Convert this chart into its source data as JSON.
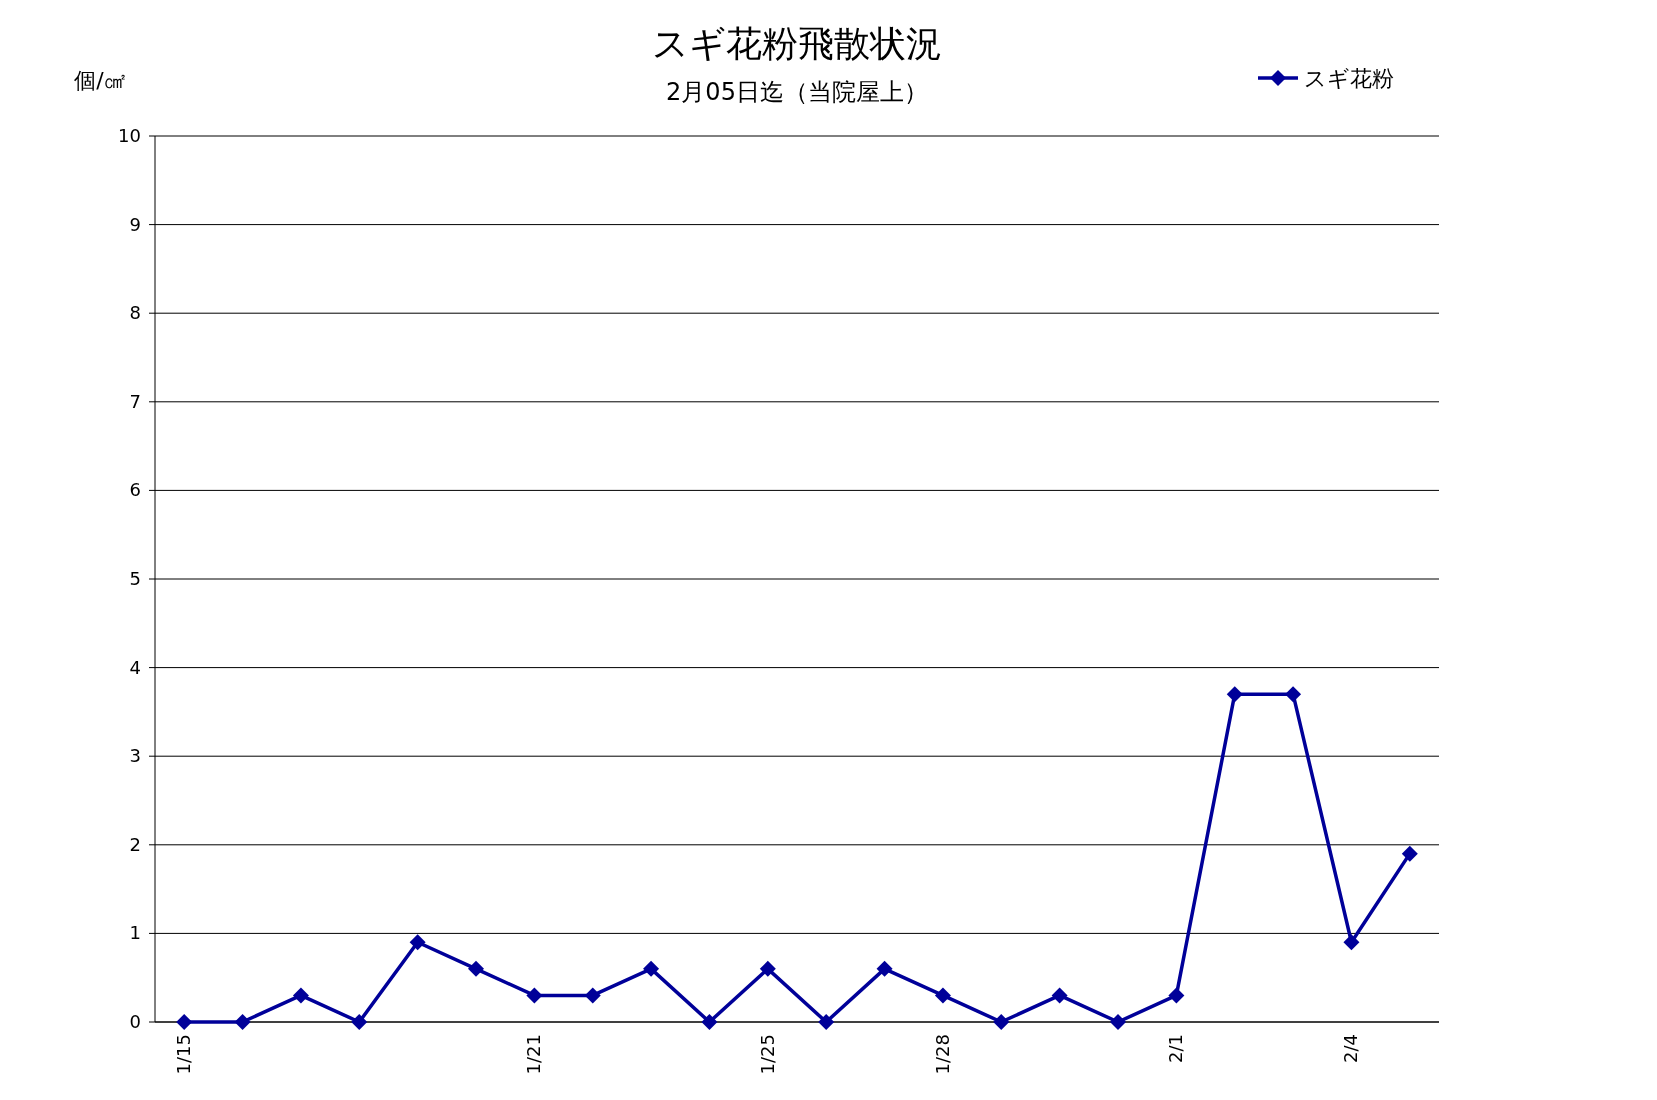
{
  "chart_data": {
    "type": "line",
    "title": "スギ花粉飛散状況",
    "subtitle": "2月05日迄（当院屋上）",
    "ylabel": "個/㎠",
    "categories": [
      "1/15",
      null,
      null,
      null,
      null,
      null,
      "1/21",
      null,
      null,
      null,
      "1/25",
      null,
      null,
      "1/28",
      null,
      null,
      null,
      "2/1",
      null,
      null,
      "2/4",
      null
    ],
    "series": [
      {
        "name": "スギ花粉",
        "color": "#000099",
        "values": [
          0,
          0,
          0.3,
          0,
          0.9,
          0.6,
          0.3,
          0.3,
          0.6,
          0,
          0.6,
          0,
          0.6,
          0.3,
          0,
          0.3,
          0,
          0.3,
          3.7,
          3.7,
          0.9,
          1.9
        ]
      }
    ],
    "ylim": [
      0,
      10
    ],
    "yticks": [
      0,
      1,
      2,
      3,
      4,
      5,
      6,
      7,
      8,
      9,
      10
    ],
    "grid": "y",
    "legend": "top right",
    "marker": "diamond"
  }
}
